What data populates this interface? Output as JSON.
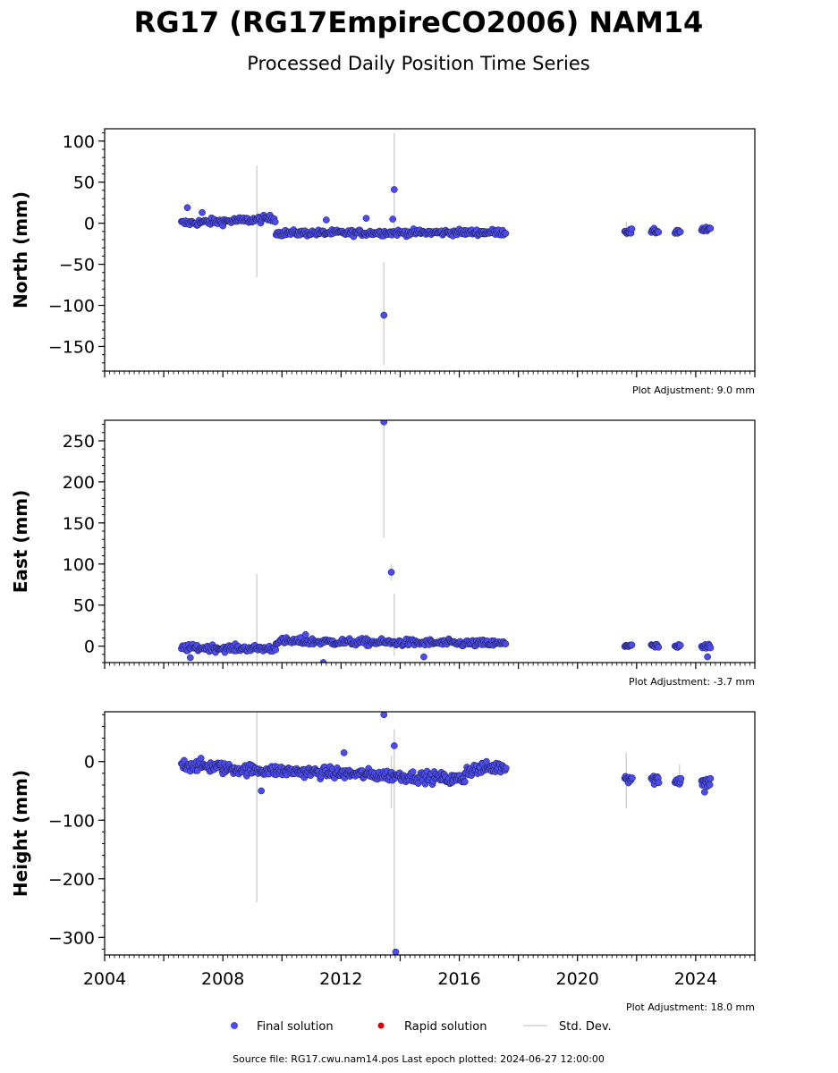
{
  "title": "RG17 (RG17EmpireCO2006) NAM14",
  "subtitle": "Processed Daily Position Time Series",
  "footer": "Source file: RG17.cwu.nam14.pos  Last epoch plotted: 2024-06-27 12:00:00",
  "legend": {
    "final": "Final solution",
    "rapid": "Rapid solution",
    "stddev": "Std. Dev."
  },
  "colors": {
    "final": "#4b4bef",
    "rapid": "#e00000",
    "stddev": "#d3d3d3"
  },
  "x_ticks": [
    {
      "value": 2004,
      "label": "2004"
    },
    {
      "value": 2008,
      "label": "2008"
    },
    {
      "value": 2012,
      "label": "2012"
    },
    {
      "value": 2016,
      "label": "2016"
    },
    {
      "value": 2020,
      "label": "2020"
    },
    {
      "value": 2024,
      "label": "2024"
    }
  ],
  "chart_data": [
    {
      "type": "scatter",
      "ylabel": "North (mm)",
      "adjustment": "Plot Adjustment: 9.0 mm",
      "xlim": [
        2004,
        2026
      ],
      "ylim": [
        -180,
        115
      ],
      "yticks": [
        100,
        50,
        0,
        -50,
        -100,
        -150
      ],
      "ytick_labels": [
        "100",
        "50",
        "0",
        "−50",
        "−100",
        "−150"
      ],
      "segments": [
        {
          "x0": 2006.6,
          "x1": 2009.0,
          "y0": 0,
          "y1": 4,
          "spread": 4,
          "step": 0.035
        },
        {
          "x0": 2009.0,
          "x1": 2009.8,
          "y0": 4,
          "y1": 6,
          "spread": 4,
          "step": 0.035
        },
        {
          "x0": 2009.8,
          "x1": 2017.6,
          "y0": -12,
          "y1": -11,
          "spread": 3.5,
          "step": 0.035
        },
        {
          "x0": 2021.6,
          "x1": 2021.85,
          "y0": -10,
          "y1": -10,
          "spread": 3,
          "step": 0.03
        },
        {
          "x0": 2022.5,
          "x1": 2022.75,
          "y0": -10,
          "y1": -10,
          "spread": 3,
          "step": 0.03
        },
        {
          "x0": 2023.3,
          "x1": 2023.5,
          "y0": -10,
          "y1": -10,
          "spread": 3,
          "step": 0.03
        },
        {
          "x0": 2024.2,
          "x1": 2024.5,
          "y0": -8,
          "y1": -8,
          "spread": 3,
          "step": 0.03
        }
      ],
      "outliers": [
        {
          "x": 2013.45,
          "y": -112
        },
        {
          "x": 2013.8,
          "y": 41
        },
        {
          "x": 2013.75,
          "y": 5
        },
        {
          "x": 2012.85,
          "y": 6
        },
        {
          "x": 2011.5,
          "y": 4
        },
        {
          "x": 2006.8,
          "y": 19
        },
        {
          "x": 2007.3,
          "y": 13
        }
      ],
      "errorbars": [
        {
          "x": 2009.15,
          "y0": -66,
          "y1": 70
        },
        {
          "x": 2013.45,
          "y0": -172,
          "y1": -48
        },
        {
          "x": 2013.8,
          "y0": -5,
          "y1": 110
        },
        {
          "x": 2021.65,
          "y0": -18,
          "y1": 2
        }
      ]
    },
    {
      "type": "scatter",
      "ylabel": "East (mm)",
      "adjustment": "Plot Adjustment: -3.7 mm",
      "xlim": [
        2004,
        2026
      ],
      "ylim": [
        -20,
        275
      ],
      "yticks": [
        250,
        200,
        150,
        100,
        50,
        0
      ],
      "ytick_labels": [
        "250",
        "200",
        "150",
        "100",
        "50",
        "0"
      ],
      "segments": [
        {
          "x0": 2006.6,
          "x1": 2009.8,
          "y0": -2,
          "y1": -3,
          "spread": 4,
          "step": 0.035
        },
        {
          "x0": 2009.8,
          "x1": 2017.6,
          "y0": 6,
          "y1": 3,
          "spread": 4,
          "step": 0.035
        },
        {
          "x0": 2021.6,
          "x1": 2021.85,
          "y0": 1,
          "y1": 1,
          "spread": 3,
          "step": 0.03
        },
        {
          "x0": 2022.5,
          "x1": 2022.75,
          "y0": 0,
          "y1": 0,
          "spread": 2.5,
          "step": 0.03
        },
        {
          "x0": 2023.3,
          "x1": 2023.5,
          "y0": -1,
          "y1": -1,
          "spread": 3,
          "step": 0.03
        },
        {
          "x0": 2024.2,
          "x1": 2024.5,
          "y0": -1,
          "y1": -1,
          "spread": 4,
          "step": 0.03
        }
      ],
      "outliers": [
        {
          "x": 2013.45,
          "y": 273
        },
        {
          "x": 2013.7,
          "y": 90
        },
        {
          "x": 2011.4,
          "y": -20
        },
        {
          "x": 2010.8,
          "y": 14
        },
        {
          "x": 2024.4,
          "y": -13
        },
        {
          "x": 2006.9,
          "y": -14
        },
        {
          "x": 2014.8,
          "y": -13
        }
      ],
      "errorbars": [
        {
          "x": 2009.15,
          "y0": -18,
          "y1": 88
        },
        {
          "x": 2013.45,
          "y0": 132,
          "y1": 270
        },
        {
          "x": 2013.8,
          "y0": -12,
          "y1": 64
        },
        {
          "x": 2013.7,
          "y0": 80,
          "y1": 100
        }
      ]
    },
    {
      "type": "scatter",
      "ylabel": "Height (mm)",
      "adjustment": "Plot Adjustment: 18.0 mm",
      "xlim": [
        2004,
        2026
      ],
      "ylim": [
        -330,
        85
      ],
      "yticks": [
        0,
        -100,
        -200,
        -300
      ],
      "ytick_labels": [
        "0",
        "−100",
        "−200",
        "−300"
      ],
      "segments": [
        {
          "x0": 2006.6,
          "x1": 2008.0,
          "y0": -5,
          "y1": -10,
          "spread": 10,
          "step": 0.03
        },
        {
          "x0": 2008.0,
          "x1": 2012.0,
          "y0": -12,
          "y1": -20,
          "spread": 9,
          "step": 0.03
        },
        {
          "x0": 2012.0,
          "x1": 2015.5,
          "y0": -20,
          "y1": -28,
          "spread": 9,
          "step": 0.03
        },
        {
          "x0": 2015.5,
          "x1": 2016.2,
          "y0": -30,
          "y1": -30,
          "spread": 9,
          "step": 0.03
        },
        {
          "x0": 2016.2,
          "x1": 2017.6,
          "y0": -15,
          "y1": -8,
          "spread": 10,
          "step": 0.03
        },
        {
          "x0": 2021.6,
          "x1": 2021.85,
          "y0": -28,
          "y1": -28,
          "spread": 8,
          "step": 0.025
        },
        {
          "x0": 2022.5,
          "x1": 2022.75,
          "y0": -30,
          "y1": -30,
          "spread": 9,
          "step": 0.025
        },
        {
          "x0": 2023.3,
          "x1": 2023.5,
          "y0": -32,
          "y1": -32,
          "spread": 8,
          "step": 0.025
        },
        {
          "x0": 2024.2,
          "x1": 2024.5,
          "y0": -35,
          "y1": -35,
          "spread": 8,
          "step": 0.025
        }
      ],
      "outliers": [
        {
          "x": 2013.45,
          "y": 80
        },
        {
          "x": 2013.8,
          "y": 27
        },
        {
          "x": 2013.85,
          "y": -325
        },
        {
          "x": 2009.3,
          "y": -50
        },
        {
          "x": 2012.1,
          "y": 15
        },
        {
          "x": 2024.3,
          "y": -52
        }
      ],
      "errorbars": [
        {
          "x": 2009.15,
          "y0": -240,
          "y1": 85
        },
        {
          "x": 2013.8,
          "y0": -325,
          "y1": 55
        },
        {
          "x": 2013.7,
          "y0": -80,
          "y1": 10
        },
        {
          "x": 2021.65,
          "y0": -80,
          "y1": 15
        },
        {
          "x": 2023.45,
          "y0": -40,
          "y1": -5
        }
      ]
    }
  ]
}
